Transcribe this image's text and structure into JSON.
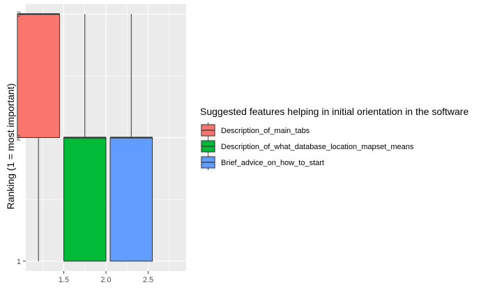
{
  "chart_data": {
    "type": "boxplot",
    "title": "",
    "xlabel": "",
    "ylabel": "Ranking (1 = most important)",
    "x_ticks": [
      1.5,
      2.0,
      2.5
    ],
    "x_tick_labels": [
      "1.5",
      "2.0",
      "2.5"
    ],
    "y_ticks": [
      1,
      2,
      3
    ],
    "y_tick_labels": [
      "1",
      "2",
      "3"
    ],
    "xlim": [
      1.05,
      2.95
    ],
    "ylim": [
      0.92,
      3.08
    ],
    "grid": true,
    "legend": {
      "title": "Suggested features helping in initial orientation in the software",
      "position": "right"
    },
    "series": [
      {
        "name": "Description_of_main_tabs",
        "color": "#F8766D",
        "x_center": 1.2,
        "box_x_range": [
          0.95,
          1.45
        ],
        "min": 1,
        "q1": 2,
        "median": 3,
        "q3": 3,
        "max": 3
      },
      {
        "name": "Description_of_what_database_location_mapset_means",
        "color": "#00BA38",
        "x_center": 1.75,
        "box_x_range": [
          1.5,
          2.0
        ],
        "min": 1,
        "q1": 1,
        "median": 2,
        "q3": 2,
        "max": 3
      },
      {
        "name": "Brief_advice_on_how_to_start",
        "color": "#619CFF",
        "x_center": 2.3,
        "box_x_range": [
          2.05,
          2.55
        ],
        "min": 1,
        "q1": 1,
        "median": 2,
        "q3": 2,
        "max": 3
      }
    ]
  }
}
